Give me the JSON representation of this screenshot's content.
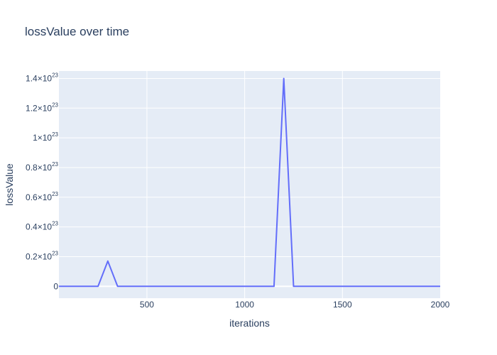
{
  "chart_data": {
    "type": "line",
    "title": "lossValue over time",
    "xlabel": "iterations",
    "ylabel": "lossValue",
    "xlim": [
      50,
      2000
    ],
    "ylim": [
      -0.08,
      1.45
    ],
    "y_unit_exponent": 23,
    "grid": true,
    "colors": {
      "plot_background": "#e5ecf6",
      "grid": "#ffffff",
      "line": "#636efa",
      "text": "#2a3f5f"
    },
    "x_ticks": [
      {
        "value": 500,
        "label": "500"
      },
      {
        "value": 1000,
        "label": "1000"
      },
      {
        "value": 1500,
        "label": "1500"
      },
      {
        "value": 2000,
        "label": "2000"
      }
    ],
    "y_ticks": [
      {
        "value": 0,
        "mantissa": "0",
        "exponent": ""
      },
      {
        "value": 0.2,
        "mantissa": "0.2×10",
        "exponent": "23"
      },
      {
        "value": 0.4,
        "mantissa": "0.4×10",
        "exponent": "23"
      },
      {
        "value": 0.6,
        "mantissa": "0.6×10",
        "exponent": "23"
      },
      {
        "value": 0.8,
        "mantissa": "0.8×10",
        "exponent": "23"
      },
      {
        "value": 1.0,
        "mantissa": "1×10",
        "exponent": "23"
      },
      {
        "value": 1.2,
        "mantissa": "1.2×10",
        "exponent": "23"
      },
      {
        "value": 1.4,
        "mantissa": "1.4×10",
        "exponent": "23"
      }
    ],
    "series": [
      {
        "name": "lossValue",
        "x": [
          50,
          100,
          150,
          200,
          250,
          300,
          350,
          400,
          450,
          500,
          550,
          600,
          650,
          700,
          750,
          800,
          850,
          900,
          950,
          1000,
          1050,
          1100,
          1150,
          1200,
          1250,
          1300,
          1350,
          1400,
          1450,
          1500,
          1550,
          1600,
          1650,
          1700,
          1750,
          1800,
          1850,
          1900,
          1950,
          2000
        ],
        "values": [
          0,
          0,
          0,
          0,
          0,
          0.17,
          0,
          0,
          0,
          0,
          0,
          0,
          0,
          0,
          0,
          0,
          0,
          0,
          0,
          0,
          0,
          0,
          0,
          1.4,
          0,
          0,
          0,
          0,
          0,
          0,
          0,
          0,
          0,
          0,
          0,
          0,
          0,
          0,
          0,
          0
        ]
      }
    ]
  }
}
